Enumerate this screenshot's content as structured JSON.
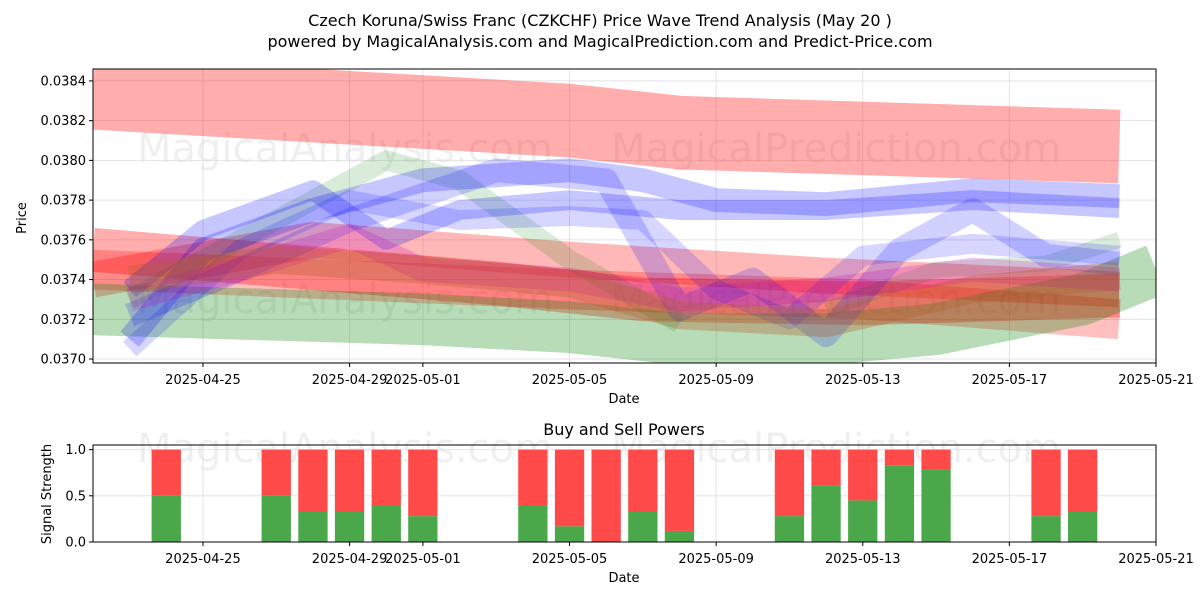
{
  "header": {
    "title": "Czech Koruna/Swiss Franc (CZKCHF) Price Wave Trend Analysis (May 20 )",
    "subtitle": "powered by MagicalAnalysis.com and MagicalPrediction.com and Predict-Price.com"
  },
  "watermarks": [
    "MagicalAnalysis.com",
    "MagicalPrediction.com"
  ],
  "colors": {
    "red": "#ff0000",
    "green": "#008000",
    "blue": "#0000ff",
    "purple": "#c000c0",
    "brown": "#b06030",
    "buy": "#4aa84a",
    "sell": "#ff4a4a",
    "grid": "#dddddd"
  },
  "chart_data": [
    {
      "type": "line",
      "title": "",
      "xlabel": "Date",
      "ylabel": "Price",
      "x_range": [
        "2025-04-22",
        "2025-05-21"
      ],
      "ylim": [
        0.03698,
        0.03846
      ],
      "x_ticks": [
        "2025-04-25",
        "2025-04-29",
        "2025-05-01",
        "2025-05-05",
        "2025-05-09",
        "2025-05-13",
        "2025-05-17",
        "2025-05-21"
      ],
      "y_ticks": [
        "0.0370",
        "0.0372",
        "0.0374",
        "0.0376",
        "0.0378",
        "0.0380",
        "0.0382",
        "0.0384"
      ],
      "grid": true,
      "bands": [
        {
          "color": "red",
          "width": 0.00037,
          "opacity": 0.32,
          "points": [
            [
              "2025-04-22",
              0.03834
            ],
            [
              "2025-05-05",
              0.0382
            ],
            [
              "2025-05-08",
              0.03814
            ],
            [
              "2025-05-20",
              0.03807
            ]
          ]
        },
        {
          "color": "red",
          "width": 0.00022,
          "opacity": 0.32,
          "points": [
            [
              "2025-04-22",
              0.03755
            ],
            [
              "2025-05-03",
              0.03738
            ],
            [
              "2025-05-07",
              0.0373
            ],
            [
              "2025-05-13",
              0.03728
            ],
            [
              "2025-05-20",
              0.03732
            ]
          ]
        },
        {
          "color": "red",
          "width": 0.00018,
          "opacity": 0.28,
          "points": [
            [
              "2025-04-22",
              0.0374
            ],
            [
              "2025-04-28",
              0.0376
            ],
            [
              "2025-05-05",
              0.0375
            ],
            [
              "2025-05-12",
              0.03742
            ],
            [
              "2025-05-20",
              0.03735
            ]
          ]
        },
        {
          "color": "red",
          "width": 0.0002,
          "opacity": 0.25,
          "points": [
            [
              "2025-04-22",
              0.03745
            ],
            [
              "2025-05-05",
              0.03735
            ],
            [
              "2025-05-13",
              0.0373
            ],
            [
              "2025-05-20",
              0.0372
            ]
          ]
        },
        {
          "color": "green",
          "width": 0.00026,
          "opacity": 0.28,
          "points": [
            [
              "2025-04-22",
              0.03725
            ],
            [
              "2025-05-01",
              0.0372
            ],
            [
              "2025-05-05",
              0.03716
            ],
            [
              "2025-05-08",
              0.0371
            ],
            [
              "2025-05-12",
              0.0371
            ],
            [
              "2025-05-15",
              0.03715
            ],
            [
              "2025-05-19",
              0.0373
            ],
            [
              "2025-05-21",
              0.03745
            ]
          ]
        },
        {
          "color": "green",
          "width": 0.0001,
          "opacity": 0.15,
          "points": [
            [
              "2025-04-23",
              0.0373
            ],
            [
              "2025-04-27",
              0.0377
            ],
            [
              "2025-04-30",
              0.038
            ],
            [
              "2025-05-02",
              0.0379
            ],
            [
              "2025-05-05",
              0.0375
            ],
            [
              "2025-05-08",
              0.03718
            ]
          ]
        },
        {
          "color": "green",
          "width": 8e-05,
          "opacity": 0.15,
          "points": [
            [
              "2025-05-12",
              0.03725
            ],
            [
              "2025-05-15",
              0.03745
            ],
            [
              "2025-05-18",
              0.03748
            ],
            [
              "2025-05-20",
              0.0376
            ]
          ]
        },
        {
          "color": "blue",
          "width": 0.00012,
          "opacity": 0.22,
          "points": [
            [
              "2025-04-23",
              0.0371
            ],
            [
              "2025-04-25",
              0.03755
            ],
            [
              "2025-04-28",
              0.03775
            ],
            [
              "2025-05-01",
              0.0379
            ],
            [
              "2025-05-05",
              0.03795
            ],
            [
              "2025-05-07",
              0.0379
            ],
            [
              "2025-05-09",
              0.0378
            ],
            [
              "2025-05-12",
              0.03778
            ],
            [
              "2025-05-16",
              0.03785
            ],
            [
              "2025-05-20",
              0.03782
            ]
          ]
        },
        {
          "color": "blue",
          "width": 0.0001,
          "opacity": 0.22,
          "points": [
            [
              "2025-04-23",
              0.03735
            ],
            [
              "2025-04-25",
              0.03765
            ],
            [
              "2025-04-28",
              0.03785
            ],
            [
              "2025-04-30",
              0.0376
            ],
            [
              "2025-05-02",
              0.03775
            ],
            [
              "2025-05-05",
              0.0378
            ],
            [
              "2025-05-08",
              0.03775
            ],
            [
              "2025-05-12",
              0.03775
            ],
            [
              "2025-05-16",
              0.0378
            ],
            [
              "2025-05-20",
              0.03776
            ]
          ]
        },
        {
          "color": "blue",
          "width": 0.00012,
          "opacity": 0.18,
          "points": [
            [
              "2025-04-23",
              0.03722
            ],
            [
              "2025-04-26",
              0.03745
            ],
            [
              "2025-04-29",
              0.0377
            ],
            [
              "2025-05-03",
              0.03795
            ],
            [
              "2025-05-06",
              0.0379
            ],
            [
              "2025-05-08",
              0.03725
            ],
            [
              "2025-05-10",
              0.0374
            ],
            [
              "2025-05-12",
              0.03712
            ],
            [
              "2025-05-14",
              0.03755
            ],
            [
              "2025-05-16",
              0.03775
            ],
            [
              "2025-05-18",
              0.03752
            ],
            [
              "2025-05-20",
              0.03748
            ]
          ]
        },
        {
          "color": "blue",
          "width": 0.0001,
          "opacity": 0.16,
          "points": [
            [
              "2025-04-23",
              0.03705
            ],
            [
              "2025-04-26",
              0.03755
            ],
            [
              "2025-04-29",
              0.0378
            ],
            [
              "2025-05-02",
              0.0377
            ],
            [
              "2025-05-05",
              0.03772
            ],
            [
              "2025-05-07",
              0.0377
            ],
            [
              "2025-05-09",
              0.03735
            ],
            [
              "2025-05-11",
              0.0372
            ],
            [
              "2025-05-13",
              0.03752
            ],
            [
              "2025-05-16",
              0.03758
            ],
            [
              "2025-05-20",
              0.03752
            ]
          ]
        },
        {
          "color": "purple",
          "width": 0.00012,
          "opacity": 0.22,
          "points": [
            [
              "2025-04-23",
              0.0373
            ],
            [
              "2025-04-26",
              0.03745
            ],
            [
              "2025-04-29",
              0.03762
            ],
            [
              "2025-05-01",
              0.03745
            ],
            [
              "2025-05-05",
              0.0374
            ],
            [
              "2025-05-08",
              0.0373
            ],
            [
              "2025-05-12",
              0.03735
            ],
            [
              "2025-05-16",
              0.03745
            ],
            [
              "2025-05-20",
              0.0374
            ]
          ]
        },
        {
          "color": "brown",
          "width": 0.00014,
          "opacity": 0.35,
          "points": [
            [
              "2025-04-23",
              0.0374
            ],
            [
              "2025-04-27",
              0.0375
            ],
            [
              "2025-05-01",
              0.03745
            ],
            [
              "2025-05-05",
              0.03738
            ],
            [
              "2025-05-08",
              0.03722
            ],
            [
              "2025-05-12",
              0.03718
            ],
            [
              "2025-05-16",
              0.03735
            ],
            [
              "2025-05-20",
              0.03742
            ]
          ]
        }
      ]
    },
    {
      "type": "bar",
      "title": "Buy and Sell Powers",
      "xlabel": "Date",
      "ylabel": "Signal Strength",
      "ylim": [
        0,
        1.05
      ],
      "x_range": [
        "2025-04-22",
        "2025-05-21"
      ],
      "x_ticks": [
        "2025-04-25",
        "2025-04-29",
        "2025-05-01",
        "2025-05-05",
        "2025-05-09",
        "2025-05-13",
        "2025-05-17",
        "2025-05-21"
      ],
      "y_ticks": [
        "0.0",
        "0.5",
        "1.0"
      ],
      "grid": true,
      "series": [
        {
          "name": "Buy"
        },
        {
          "name": "Sell"
        }
      ],
      "categories": [
        "2025-04-24",
        "2025-04-27",
        "2025-04-28",
        "2025-04-29",
        "2025-04-30",
        "2025-05-01",
        "2025-05-04",
        "2025-05-05",
        "2025-05-06",
        "2025-05-07",
        "2025-05-08",
        "2025-05-11",
        "2025-05-12",
        "2025-05-13",
        "2025-05-14",
        "2025-05-15",
        "2025-05-18",
        "2025-05-19"
      ],
      "buy": [
        0.5,
        0.5,
        0.33,
        0.33,
        0.4,
        0.28,
        0.4,
        0.17,
        0.0,
        0.33,
        0.12,
        0.28,
        0.61,
        0.45,
        0.83,
        0.78,
        0.28,
        0.33
      ],
      "sell": [
        0.5,
        0.5,
        0.67,
        0.67,
        0.6,
        0.72,
        0.6,
        0.83,
        1.0,
        0.67,
        0.88,
        0.72,
        0.39,
        0.55,
        0.17,
        0.22,
        0.72,
        0.67
      ]
    }
  ]
}
